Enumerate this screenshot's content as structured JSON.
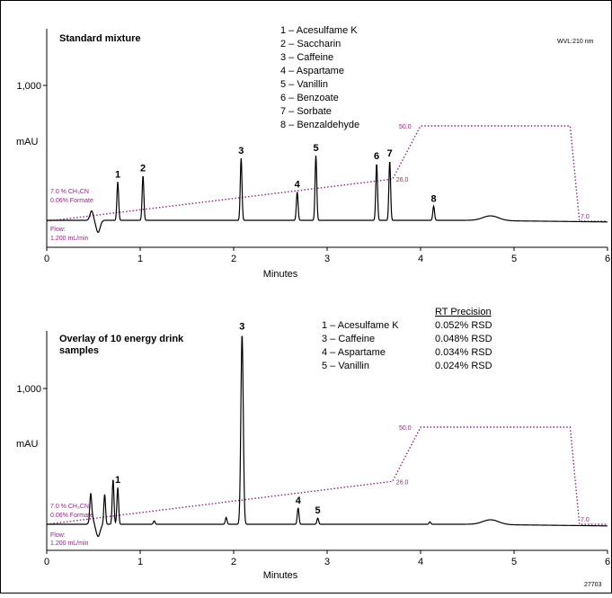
{
  "figure_id": "27703",
  "chart_data": [
    {
      "type": "line",
      "title": "Standard mixture",
      "xlabel": "Minutes",
      "ylabel": "mAU",
      "x_ticks": [
        "0",
        "1",
        "2",
        "3",
        "4",
        "5",
        "6"
      ],
      "xlim": [
        0,
        6
      ],
      "y_ticks": [
        {
          "label": "1,000",
          "value": 1000
        }
      ],
      "ylim": [
        -120,
        1420
      ],
      "wavelength": "WVL:210 nm",
      "legend": [
        "1 – Acesulfame K",
        "2 – Saccharin",
        "3 – Caffeine",
        "4 – Aspartame",
        "5 – Vanillin",
        "6 – Benzoate",
        "7 – Sorbate",
        "8 – Benzaldehyde"
      ],
      "gradient_conditions": [
        "7.0 %  CH₃CN",
        "0.06% Formate"
      ],
      "flow": [
        "Flow:",
        "1.200 mL/min"
      ],
      "gradient": {
        "series_name": "% CH₃CN",
        "points": [
          [
            0,
            7.0
          ],
          [
            3.7,
            26.0
          ],
          [
            4.0,
            50.0
          ],
          [
            5.6,
            50.0
          ],
          [
            5.7,
            7.0
          ],
          [
            6.0,
            7.0
          ]
        ],
        "labels": [
          "26.0",
          "50.0",
          "7.0"
        ]
      },
      "peaks": [
        {
          "label": "1",
          "rt": 0.76,
          "height": 285
        },
        {
          "label": "2",
          "rt": 1.03,
          "height": 330
        },
        {
          "label": "3",
          "rt": 2.08,
          "height": 460
        },
        {
          "label": "4",
          "rt": 2.68,
          "height": 210
        },
        {
          "label": "5",
          "rt": 2.88,
          "height": 480
        },
        {
          "label": "6",
          "rt": 3.53,
          "height": 420
        },
        {
          "label": "7",
          "rt": 3.67,
          "height": 440
        },
        {
          "label": "8",
          "rt": 4.14,
          "height": 105
        }
      ]
    },
    {
      "type": "line",
      "title": "Overlay of 10 energy drink samples",
      "xlabel": "Minutes",
      "ylabel": "mAU",
      "x_ticks": [
        "0",
        "1",
        "2",
        "3",
        "4",
        "5",
        "6"
      ],
      "xlim": [
        0,
        6
      ],
      "y_ticks": [
        {
          "label": "1,000",
          "value": 1000
        }
      ],
      "ylim": [
        -120,
        1420
      ],
      "legend": [
        "1 – Acesulfame K",
        "3 – Caffeine",
        "4 – Aspartame",
        "5 – Vanillin"
      ],
      "table": {
        "header": "RT Precision",
        "rows": [
          {
            "compound": "1 – Acesulfame K",
            "rsd": "0.052% RSD"
          },
          {
            "compound": "3 – Caffeine",
            "rsd": "0.048% RSD"
          },
          {
            "compound": "4 – Aspartame",
            "rsd": "0.034% RSD"
          },
          {
            "compound": "5 – Vanillin",
            "rsd": "0.024% RSD"
          }
        ]
      },
      "gradient_conditions": [
        "7.0 %  CH₃CN",
        "0.06% Formate"
      ],
      "flow": [
        "Flow:",
        "1.200 mL/min"
      ],
      "gradient": {
        "series_name": "% CH₃CN",
        "points": [
          [
            0,
            7.0
          ],
          [
            3.7,
            26.0
          ],
          [
            4.0,
            50.0
          ],
          [
            5.6,
            50.0
          ],
          [
            5.7,
            7.0
          ],
          [
            6.0,
            7.0
          ]
        ],
        "labels": [
          "26.0",
          "50.0",
          "7.0"
        ]
      },
      "peaks": [
        {
          "label": "1",
          "rt": 0.76,
          "height": 270
        },
        {
          "label": "3",
          "rt": 2.09,
          "height": 1400
        },
        {
          "label": "4",
          "rt": 2.69,
          "height": 120
        },
        {
          "label": "5",
          "rt": 2.9,
          "height": 45
        }
      ],
      "unlabeled_peaks": [
        {
          "rt": 0.47,
          "height": 170
        },
        {
          "rt": 0.62,
          "height": 220
        },
        {
          "rt": 0.71,
          "height": 330
        },
        {
          "rt": 1.15,
          "height": 25
        },
        {
          "rt": 1.92,
          "height": 50
        },
        {
          "rt": 4.1,
          "height": 18
        }
      ]
    }
  ]
}
